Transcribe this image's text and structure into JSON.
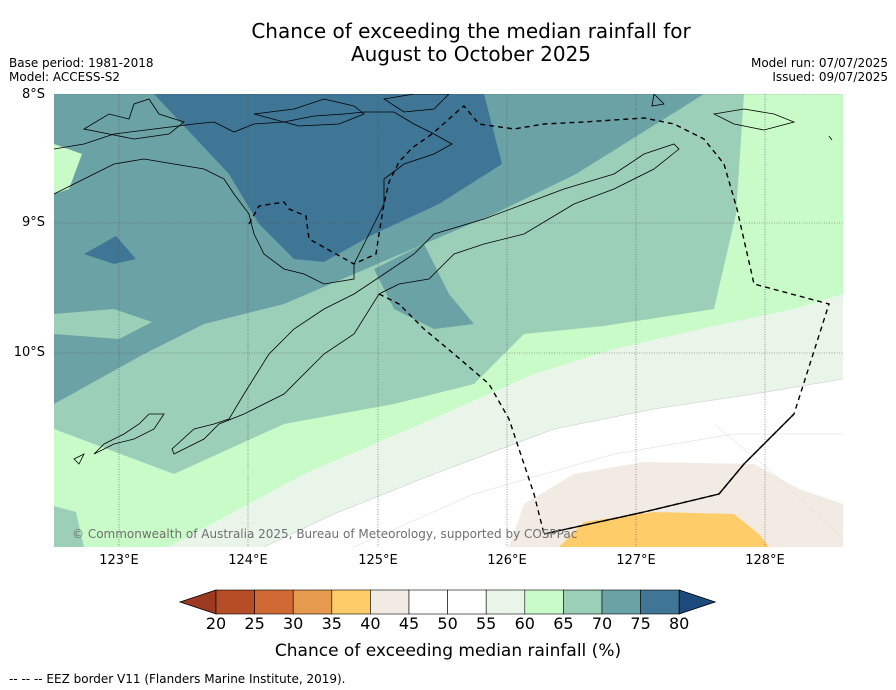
{
  "title_line1": "Chance of exceeding the median rainfall for",
  "title_line2": "August to October 2025",
  "meta": {
    "base_period": "Base period: 1981-2018",
    "model": "Model: ACCESS-S2",
    "model_run": "Model run: 07/07/2025",
    "issued": "Issued: 09/07/2025"
  },
  "latitude_labels": [
    "8°S",
    "9°S",
    "10°S"
  ],
  "longitude_labels": [
    "123°E",
    "124°E",
    "125°E",
    "126°E",
    "127°E",
    "128°E"
  ],
  "copyright": "© Commonwealth of Australia 2025, Bureau of Meteorology, supported by COSPPac",
  "colorbar": {
    "ticks": [
      "20",
      "25",
      "30",
      "35",
      "40",
      "45",
      "50",
      "55",
      "60",
      "65",
      "70",
      "75",
      "80"
    ],
    "colors": [
      "#b54d27",
      "#cf6a35",
      "#e59a4d",
      "#fecd6a",
      "#f1ebe4",
      "#ffffff",
      "#ffffff",
      "#eaf5ea",
      "#c9fbc9",
      "#9ccfb7",
      "#6ba2a5",
      "#3f7696"
    ],
    "under_color": "#9c3a21",
    "over_color": "#1d4a7c",
    "label": "Chance of exceeding median rainfall (%)"
  },
  "footnote": "--  --  -- EEZ border V11 (Flanders Marine Institute, 2019)."
}
